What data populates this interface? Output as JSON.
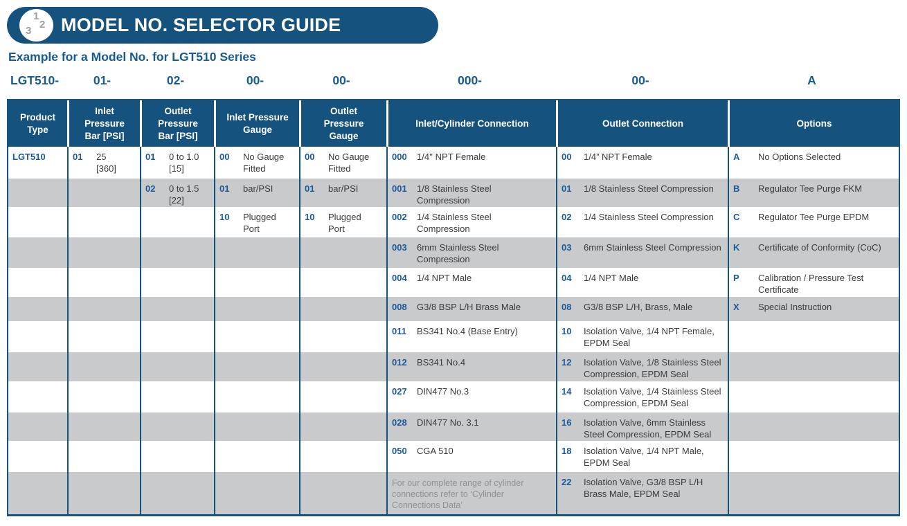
{
  "banner": {
    "title": "MODEL NO. SELECTOR GUIDE",
    "icon_numbers": [
      "1",
      "2",
      "3"
    ]
  },
  "subtitle": "Example for a Model No. for LGT510 Series",
  "model_segments": [
    "LGT510-",
    "01-",
    "02-",
    "00-",
    "00-",
    "000-",
    "00-",
    "A"
  ],
  "colors": {
    "navy": "#16527e",
    "code_blue": "#1b5a9b",
    "stripe_gray": "#c9cacc",
    "body_text": "#3b3b3c",
    "note_gray": "#8f9296"
  },
  "table": {
    "headers": [
      "Product\nType",
      "Inlet\nPressure\nBar [PSI]",
      "Outlet\nPressure\nBar [PSI]",
      "Inlet Pressure\nGauge",
      "Outlet\nPressure\nGauge",
      "Inlet/Cylinder Connection",
      "Outlet Connection",
      "Options"
    ],
    "rows": [
      {
        "cells": [
          {
            "code": "LGT510",
            "desc": ""
          },
          {
            "code": "01",
            "desc": "25\n[360]"
          },
          {
            "code": "01",
            "desc": "0 to 1.0\n[15]"
          },
          {
            "code": "00",
            "desc": "No Gauge\nFitted"
          },
          {
            "code": "00",
            "desc": "No Gauge\nFitted"
          },
          {
            "code": "000",
            "desc": "1/4'' NPT Female"
          },
          {
            "code": "00",
            "desc": "1/4” NPT Female"
          },
          {
            "code": "A",
            "desc": "No Options Selected"
          }
        ]
      },
      {
        "cells": [
          {
            "code": "",
            "desc": ""
          },
          {
            "code": "",
            "desc": ""
          },
          {
            "code": "02",
            "desc": "0 to 1.5\n[22]"
          },
          {
            "code": "01",
            "desc": "bar/PSI"
          },
          {
            "code": "01",
            "desc": "bar/PSI"
          },
          {
            "code": "001",
            "desc": "1/8 Stainless Steel Compression"
          },
          {
            "code": "01",
            "desc": "1/8 Stainless Steel Compression"
          },
          {
            "code": "B",
            "desc": "Regulator Tee Purge FKM"
          }
        ]
      },
      {
        "cells": [
          {
            "code": "",
            "desc": ""
          },
          {
            "code": "",
            "desc": ""
          },
          {
            "code": "",
            "desc": ""
          },
          {
            "code": "10",
            "desc": "Plugged\nPort"
          },
          {
            "code": "10",
            "desc": "Plugged\nPort"
          },
          {
            "code": "002",
            "desc": "1/4 Stainless Steel Compression"
          },
          {
            "code": "02",
            "desc": "1/4 Stainless Steel Compression"
          },
          {
            "code": "C",
            "desc": "Regulator Tee Purge EPDM"
          }
        ]
      },
      {
        "cells": [
          {
            "code": "",
            "desc": ""
          },
          {
            "code": "",
            "desc": ""
          },
          {
            "code": "",
            "desc": ""
          },
          {
            "code": "",
            "desc": ""
          },
          {
            "code": "",
            "desc": ""
          },
          {
            "code": "003",
            "desc": "6mm Stainless Steel Compression"
          },
          {
            "code": "03",
            "desc": "6mm Stainless Steel Compression"
          },
          {
            "code": "K",
            "desc": "Certificate of Conformity (CoC)"
          }
        ]
      },
      {
        "cells": [
          {
            "code": "",
            "desc": ""
          },
          {
            "code": "",
            "desc": ""
          },
          {
            "code": "",
            "desc": ""
          },
          {
            "code": "",
            "desc": ""
          },
          {
            "code": "",
            "desc": ""
          },
          {
            "code": "004",
            "desc": "1/4 NPT Male"
          },
          {
            "code": "04",
            "desc": "1/4 NPT Male"
          },
          {
            "code": "P",
            "desc": "Calibration / Pressure Test Certificate"
          }
        ]
      },
      {
        "cells": [
          {
            "code": "",
            "desc": ""
          },
          {
            "code": "",
            "desc": ""
          },
          {
            "code": "",
            "desc": ""
          },
          {
            "code": "",
            "desc": ""
          },
          {
            "code": "",
            "desc": ""
          },
          {
            "code": "008",
            "desc": "G3/8 BSP L/H Brass Male"
          },
          {
            "code": "08",
            "desc": "G3/8 BSP L/H, Brass, Male"
          },
          {
            "code": "X",
            "desc": "Special Instruction"
          }
        ]
      },
      {
        "cells": [
          {
            "code": "",
            "desc": ""
          },
          {
            "code": "",
            "desc": ""
          },
          {
            "code": "",
            "desc": ""
          },
          {
            "code": "",
            "desc": ""
          },
          {
            "code": "",
            "desc": ""
          },
          {
            "code": "011",
            "desc": "BS341 No.4 (Base Entry)"
          },
          {
            "code": "10",
            "desc": "Isolation Valve, 1/4 NPT Female, EPDM Seal"
          },
          {
            "code": "",
            "desc": ""
          }
        ]
      },
      {
        "cells": [
          {
            "code": "",
            "desc": ""
          },
          {
            "code": "",
            "desc": ""
          },
          {
            "code": "",
            "desc": ""
          },
          {
            "code": "",
            "desc": ""
          },
          {
            "code": "",
            "desc": ""
          },
          {
            "code": "012",
            "desc": "BS341 No.4"
          },
          {
            "code": "12",
            "desc": "Isolation Valve, 1/8 Stainless Steel Compression, EPDM Seal"
          },
          {
            "code": "",
            "desc": ""
          }
        ]
      },
      {
        "cells": [
          {
            "code": "",
            "desc": ""
          },
          {
            "code": "",
            "desc": ""
          },
          {
            "code": "",
            "desc": ""
          },
          {
            "code": "",
            "desc": ""
          },
          {
            "code": "",
            "desc": ""
          },
          {
            "code": "027",
            "desc": "DIN477 No.3"
          },
          {
            "code": "14",
            "desc": "Isolation Valve, 1/4 Stainless Steel Compression, EPDM Seal"
          },
          {
            "code": "",
            "desc": ""
          }
        ]
      },
      {
        "cells": [
          {
            "code": "",
            "desc": ""
          },
          {
            "code": "",
            "desc": ""
          },
          {
            "code": "",
            "desc": ""
          },
          {
            "code": "",
            "desc": ""
          },
          {
            "code": "",
            "desc": ""
          },
          {
            "code": "028",
            "desc": "DIN477 No. 3.1"
          },
          {
            "code": "16",
            "desc": "Isolation Valve, 6mm Stainless Steel Compression, EPDM Seal"
          },
          {
            "code": "",
            "desc": ""
          }
        ]
      },
      {
        "cells": [
          {
            "code": "",
            "desc": ""
          },
          {
            "code": "",
            "desc": ""
          },
          {
            "code": "",
            "desc": ""
          },
          {
            "code": "",
            "desc": ""
          },
          {
            "code": "",
            "desc": ""
          },
          {
            "code": "050",
            "desc": "CGA 510"
          },
          {
            "code": "18",
            "desc": "Isolation Valve, 1/4 NPT Male, EPDM Seal"
          },
          {
            "code": "",
            "desc": ""
          }
        ]
      },
      {
        "cells": [
          {
            "code": "",
            "desc": ""
          },
          {
            "code": "",
            "desc": ""
          },
          {
            "code": "",
            "desc": ""
          },
          {
            "code": "",
            "desc": ""
          },
          {
            "code": "",
            "desc": ""
          },
          {
            "note": "For our complete range of cylinder connections refer to ‘Cylinder Connections Data’"
          },
          {
            "code": "22",
            "desc": "Isolation Valve, G3/8 BSP L/H Brass Male, EPDM Seal"
          },
          {
            "code": "",
            "desc": ""
          }
        ]
      }
    ]
  }
}
